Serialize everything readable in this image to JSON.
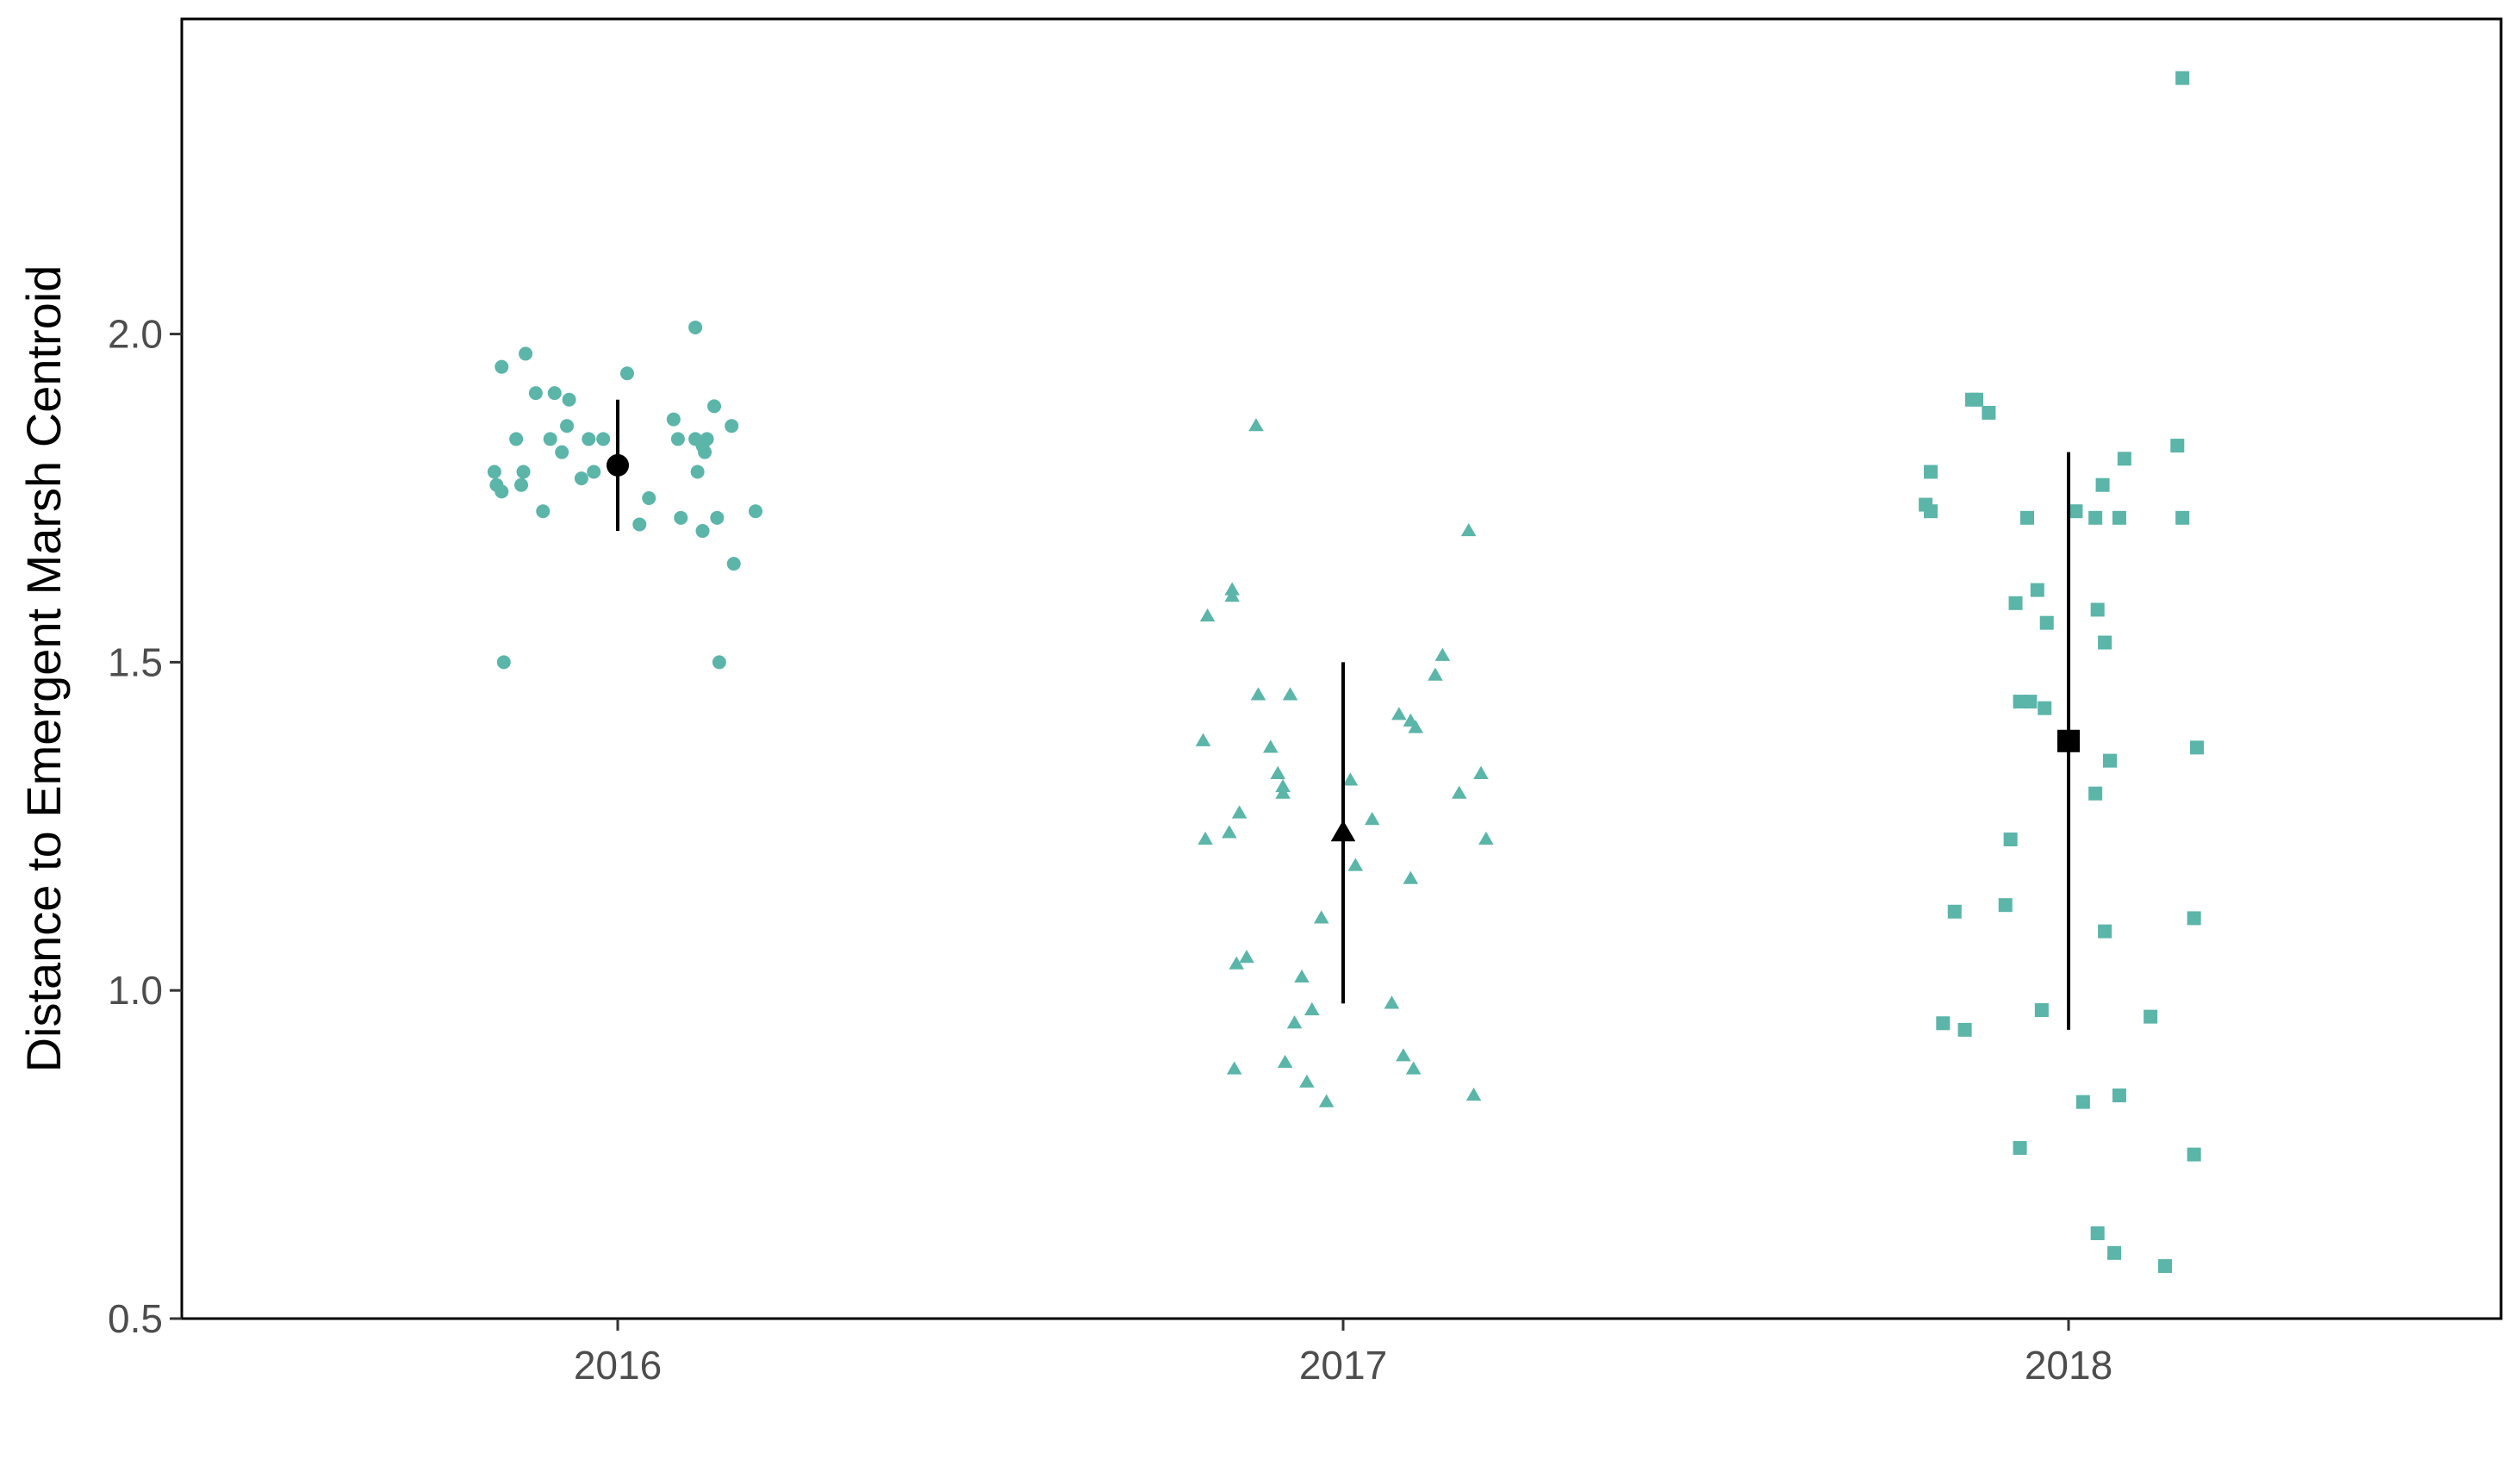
{
  "chart_data": {
    "type": "scatter",
    "title": "",
    "xlabel": "",
    "ylabel": "Distance to Emergent Marsh Centroid",
    "ylim": [
      0.5,
      2.48
    ],
    "yticks": [
      0.5,
      1.0,
      1.5,
      2.0
    ],
    "ytick_labels": [
      "0.5",
      "1.0",
      "1.5",
      "2.0"
    ],
    "categories": [
      "2016",
      "2017",
      "2018"
    ],
    "grid": false,
    "legend": "none",
    "colors": {
      "points": "#5BB5A9",
      "summary": "#000000",
      "axis": "#000000",
      "tick_text": "#4d4d4d"
    },
    "series": [
      {
        "category": "2016",
        "marker": "circle",
        "points": [
          {
            "x": -0.17,
            "y": 1.79
          },
          {
            "x": -0.167,
            "y": 1.77
          },
          {
            "x": -0.16,
            "y": 1.76
          },
          {
            "x": -0.16,
            "y": 1.95
          },
          {
            "x": -0.157,
            "y": 1.5
          },
          {
            "x": -0.14,
            "y": 1.84
          },
          {
            "x": -0.133,
            "y": 1.77
          },
          {
            "x": -0.13,
            "y": 1.79
          },
          {
            "x": -0.127,
            "y": 1.97
          },
          {
            "x": -0.113,
            "y": 1.91
          },
          {
            "x": -0.103,
            "y": 1.73
          },
          {
            "x": -0.093,
            "y": 1.84
          },
          {
            "x": -0.087,
            "y": 1.91
          },
          {
            "x": -0.077,
            "y": 1.82
          },
          {
            "x": -0.07,
            "y": 1.86
          },
          {
            "x": -0.067,
            "y": 1.9
          },
          {
            "x": -0.05,
            "y": 1.78
          },
          {
            "x": -0.04,
            "y": 1.84
          },
          {
            "x": -0.033,
            "y": 1.79
          },
          {
            "x": -0.02,
            "y": 1.84
          },
          {
            "x": 0.013,
            "y": 1.94
          },
          {
            "x": 0.03,
            "y": 1.71
          },
          {
            "x": 0.043,
            "y": 1.75
          },
          {
            "x": 0.077,
            "y": 1.87
          },
          {
            "x": 0.083,
            "y": 1.84
          },
          {
            "x": 0.087,
            "y": 1.72
          },
          {
            "x": 0.107,
            "y": 1.84
          },
          {
            "x": 0.107,
            "y": 2.01
          },
          {
            "x": 0.11,
            "y": 1.79
          },
          {
            "x": 0.117,
            "y": 1.83
          },
          {
            "x": 0.117,
            "y": 1.7
          },
          {
            "x": 0.12,
            "y": 1.82
          },
          {
            "x": 0.123,
            "y": 1.84
          },
          {
            "x": 0.133,
            "y": 1.89
          },
          {
            "x": 0.137,
            "y": 1.72
          },
          {
            "x": 0.14,
            "y": 1.5
          },
          {
            "x": 0.157,
            "y": 1.86
          },
          {
            "x": 0.16,
            "y": 1.65
          },
          {
            "x": 0.19,
            "y": 1.73
          }
        ],
        "summary": {
          "mean": 1.8,
          "lower": 1.7,
          "upper": 1.9
        }
      },
      {
        "category": "2017",
        "marker": "triangle",
        "points": [
          {
            "x": -0.193,
            "y": 1.38
          },
          {
            "x": -0.19,
            "y": 1.23
          },
          {
            "x": -0.187,
            "y": 1.57
          },
          {
            "x": -0.157,
            "y": 1.24
          },
          {
            "x": -0.153,
            "y": 1.61
          },
          {
            "x": -0.153,
            "y": 1.6
          },
          {
            "x": -0.15,
            "y": 0.88
          },
          {
            "x": -0.147,
            "y": 1.04
          },
          {
            "x": -0.143,
            "y": 1.27
          },
          {
            "x": -0.133,
            "y": 1.05
          },
          {
            "x": -0.12,
            "y": 1.86
          },
          {
            "x": -0.117,
            "y": 1.45
          },
          {
            "x": -0.1,
            "y": 1.37
          },
          {
            "x": -0.09,
            "y": 1.33
          },
          {
            "x": -0.083,
            "y": 1.3
          },
          {
            "x": -0.083,
            "y": 1.31
          },
          {
            "x": -0.08,
            "y": 0.89
          },
          {
            "x": -0.073,
            "y": 1.45
          },
          {
            "x": -0.067,
            "y": 0.95
          },
          {
            "x": -0.057,
            "y": 1.02
          },
          {
            "x": -0.05,
            "y": 0.86
          },
          {
            "x": -0.043,
            "y": 0.97
          },
          {
            "x": -0.03,
            "y": 1.11
          },
          {
            "x": -0.023,
            "y": 0.83
          },
          {
            "x": 0.01,
            "y": 1.32
          },
          {
            "x": 0.017,
            "y": 1.19
          },
          {
            "x": 0.04,
            "y": 1.26
          },
          {
            "x": 0.067,
            "y": 0.98
          },
          {
            "x": 0.077,
            "y": 1.42
          },
          {
            "x": 0.083,
            "y": 0.9
          },
          {
            "x": 0.093,
            "y": 1.17
          },
          {
            "x": 0.093,
            "y": 1.41
          },
          {
            "x": 0.097,
            "y": 0.88
          },
          {
            "x": 0.1,
            "y": 1.4
          },
          {
            "x": 0.127,
            "y": 1.48
          },
          {
            "x": 0.137,
            "y": 1.51
          },
          {
            "x": 0.16,
            "y": 1.3
          },
          {
            "x": 0.173,
            "y": 1.7
          },
          {
            "x": 0.18,
            "y": 0.84
          },
          {
            "x": 0.19,
            "y": 1.33
          },
          {
            "x": 0.197,
            "y": 1.23
          }
        ],
        "summary": {
          "mean": 1.24,
          "lower": 0.98,
          "upper": 1.5
        }
      },
      {
        "category": "2018",
        "marker": "square",
        "points": [
          {
            "x": -0.197,
            "y": 1.74
          },
          {
            "x": -0.19,
            "y": 1.73
          },
          {
            "x": -0.19,
            "y": 1.79
          },
          {
            "x": -0.173,
            "y": 0.95
          },
          {
            "x": -0.157,
            "y": 1.12
          },
          {
            "x": -0.143,
            "y": 0.94
          },
          {
            "x": -0.133,
            "y": 1.9
          },
          {
            "x": -0.127,
            "y": 1.9
          },
          {
            "x": -0.11,
            "y": 1.88
          },
          {
            "x": -0.087,
            "y": 1.13
          },
          {
            "x": -0.08,
            "y": 1.23
          },
          {
            "x": -0.073,
            "y": 1.59
          },
          {
            "x": -0.067,
            "y": 1.44
          },
          {
            "x": -0.067,
            "y": 0.76
          },
          {
            "x": -0.057,
            "y": 1.72
          },
          {
            "x": -0.053,
            "y": 1.44
          },
          {
            "x": -0.043,
            "y": 1.61
          },
          {
            "x": -0.037,
            "y": 0.97
          },
          {
            "x": -0.033,
            "y": 1.43
          },
          {
            "x": -0.03,
            "y": 1.56
          },
          {
            "x": 0.01,
            "y": 1.73
          },
          {
            "x": 0.02,
            "y": 0.83
          },
          {
            "x": 0.037,
            "y": 1.72
          },
          {
            "x": 0.037,
            "y": 1.3
          },
          {
            "x": 0.04,
            "y": 0.63
          },
          {
            "x": 0.04,
            "y": 1.58
          },
          {
            "x": 0.047,
            "y": 1.77
          },
          {
            "x": 0.05,
            "y": 1.53
          },
          {
            "x": 0.05,
            "y": 1.09
          },
          {
            "x": 0.057,
            "y": 1.35
          },
          {
            "x": 0.063,
            "y": 0.6
          },
          {
            "x": 0.07,
            "y": 1.72
          },
          {
            "x": 0.07,
            "y": 0.84
          },
          {
            "x": 0.077,
            "y": 1.81
          },
          {
            "x": 0.113,
            "y": 0.96
          },
          {
            "x": 0.133,
            "y": 0.58
          },
          {
            "x": 0.15,
            "y": 1.83
          },
          {
            "x": 0.157,
            "y": 1.72
          },
          {
            "x": 0.157,
            "y": 2.39
          },
          {
            "x": 0.173,
            "y": 0.75
          },
          {
            "x": 0.173,
            "y": 1.11
          },
          {
            "x": 0.177,
            "y": 1.37
          }
        ],
        "summary": {
          "mean": 1.38,
          "lower": 0.94,
          "upper": 1.82
        }
      }
    ]
  }
}
